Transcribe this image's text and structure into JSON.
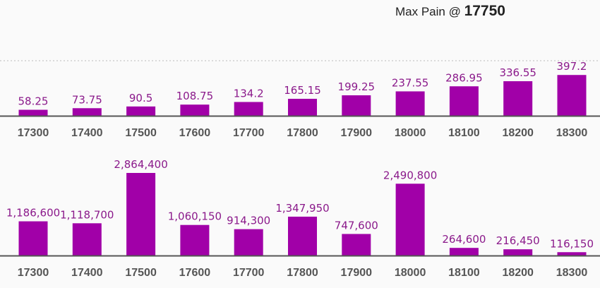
{
  "header": {
    "label": "Max Pain @ ",
    "value": "17750"
  },
  "colors": {
    "bar": "#a100a8",
    "value_label": "#8b1a8b",
    "axis": "#555555",
    "gridline": "#bbbbbb"
  },
  "chart_data": [
    {
      "type": "bar",
      "categories": [
        "17300",
        "17400",
        "17500",
        "17600",
        "17700",
        "17800",
        "17900",
        "18000",
        "18100",
        "18200",
        "18300"
      ],
      "values": [
        58.25,
        73.75,
        90.5,
        108.75,
        134.2,
        165.15,
        199.25,
        237.55,
        286.95,
        336.55,
        397.2
      ],
      "value_labels": [
        "58.25",
        "73.75",
        "90.5",
        "108.75",
        "134.2",
        "165.15",
        "199.25",
        "237.55",
        "286.95",
        "336.55",
        "397.2"
      ],
      "title": "",
      "xlabel": "",
      "ylabel": "",
      "ylim": [
        0,
        440
      ],
      "grid": "dotted top line"
    },
    {
      "type": "bar",
      "categories": [
        "17300",
        "17400",
        "17500",
        "17600",
        "17700",
        "17800",
        "17900",
        "18000",
        "18100",
        "18200",
        "18300"
      ],
      "values": [
        1186600,
        1118700,
        2864400,
        1060150,
        914300,
        1347950,
        747600,
        2490800,
        264600,
        216450,
        116150
      ],
      "value_labels": [
        "1,186,600",
        "1,118,700",
        "2,864,400",
        "1,060,150",
        "914,300",
        "1,347,950",
        "747,600",
        "2,490,800",
        "264,600",
        "216,450",
        "116,150"
      ],
      "title": "",
      "xlabel": "",
      "ylabel": "",
      "ylim": [
        0,
        2864400
      ],
      "grid": "none"
    }
  ]
}
